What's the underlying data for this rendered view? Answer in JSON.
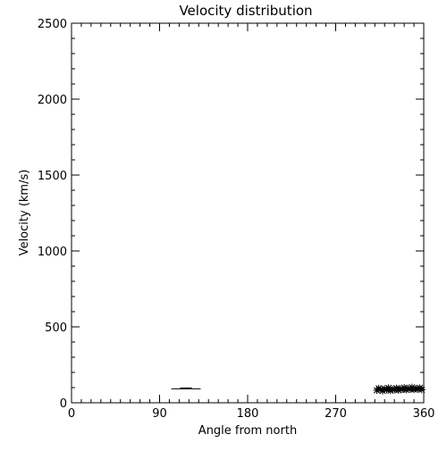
{
  "chart_data": {
    "type": "scatter",
    "title": "Velocity distribution",
    "xlabel": "Angle from north",
    "ylabel": "Velocity (km/s)",
    "xlim": [
      0,
      360
    ],
    "ylim": [
      0,
      2500
    ],
    "xticks": [
      0,
      90,
      180,
      270,
      360
    ],
    "yticks": [
      0,
      500,
      1000,
      1500,
      2000,
      2500
    ],
    "xtick_labels": [
      "0",
      "90",
      "180",
      "270",
      "360"
    ],
    "ytick_labels": [
      "0",
      "500",
      "1000",
      "1500",
      "2000",
      "2500"
    ],
    "xminor_step": 10,
    "yminor_step": 100,
    "grid": false,
    "line_segments": [
      {
        "x": [
          102,
          132
        ],
        "y": [
          92,
          92
        ]
      }
    ],
    "series": [
      {
        "marker": "asterisk",
        "points": [
          {
            "x": 312,
            "y": 82
          },
          {
            "x": 314,
            "y": 95
          },
          {
            "x": 316,
            "y": 88
          },
          {
            "x": 318,
            "y": 78
          },
          {
            "x": 320,
            "y": 92
          },
          {
            "x": 322,
            "y": 85
          },
          {
            "x": 324,
            "y": 98
          },
          {
            "x": 326,
            "y": 80
          },
          {
            "x": 328,
            "y": 90
          },
          {
            "x": 330,
            "y": 86
          },
          {
            "x": 332,
            "y": 96
          },
          {
            "x": 334,
            "y": 83
          },
          {
            "x": 336,
            "y": 93
          },
          {
            "x": 338,
            "y": 88
          },
          {
            "x": 340,
            "y": 100
          },
          {
            "x": 342,
            "y": 85
          },
          {
            "x": 344,
            "y": 95
          },
          {
            "x": 346,
            "y": 89
          },
          {
            "x": 348,
            "y": 102
          },
          {
            "x": 350,
            "y": 87
          },
          {
            "x": 352,
            "y": 94
          },
          {
            "x": 354,
            "y": 90
          },
          {
            "x": 356,
            "y": 98
          },
          {
            "x": 358,
            "y": 86
          }
        ]
      }
    ]
  }
}
